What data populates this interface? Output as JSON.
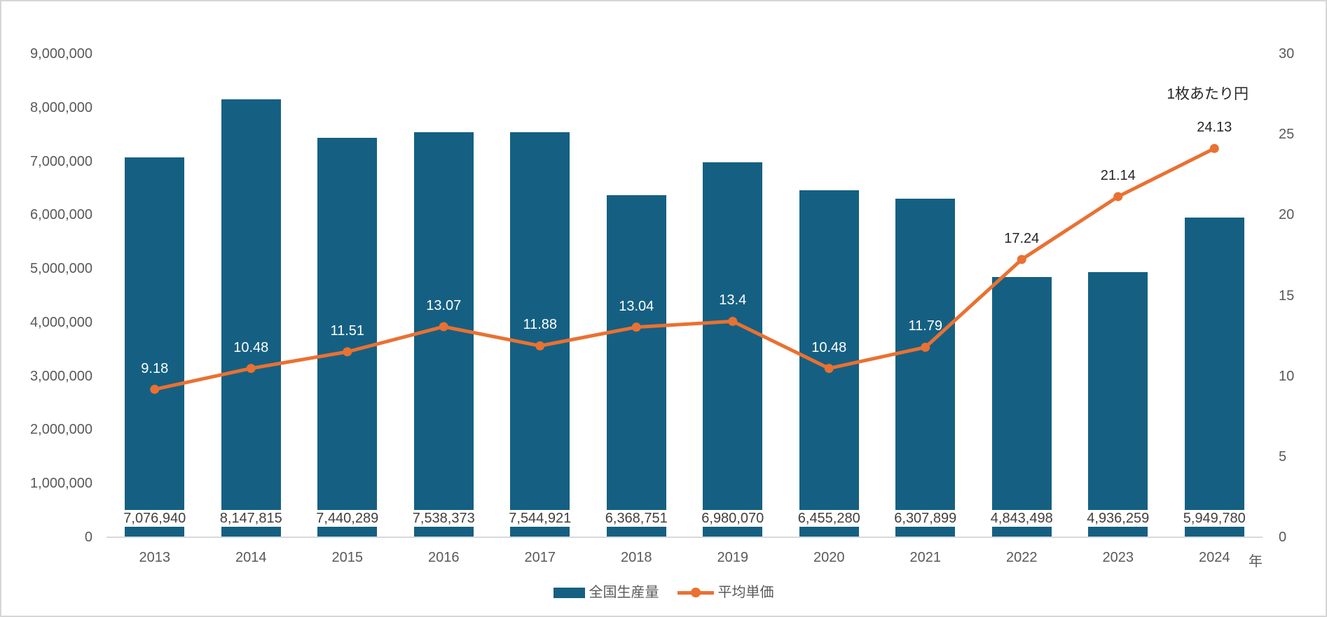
{
  "chart_data": {
    "type": "bar+line-combo",
    "categories": [
      "2013",
      "2014",
      "2015",
      "2016",
      "2017",
      "2018",
      "2019",
      "2020",
      "2021",
      "2022",
      "2023",
      "2024"
    ],
    "series": [
      {
        "name": "全国生産量",
        "type": "bar",
        "axis": "left",
        "color": "#156082",
        "values": [
          7076940,
          8147815,
          7440289,
          7538373,
          7544921,
          6368751,
          6980070,
          6455280,
          6307899,
          4843498,
          4936259,
          5949780
        ],
        "labels": [
          "7,076,940",
          "8,147,815",
          "7,440,289",
          "7,538,373",
          "7,544,921",
          "6,368,751",
          "6,980,070",
          "6,455,280",
          "6,307,899",
          "4,843,498",
          "4,936,259",
          "5,949,780"
        ]
      },
      {
        "name": "平均単価",
        "type": "line",
        "axis": "right",
        "color": "#e97132",
        "values": [
          9.18,
          10.48,
          11.51,
          13.07,
          11.88,
          13.04,
          13.4,
          10.48,
          11.79,
          17.24,
          21.14,
          24.13
        ],
        "labels": [
          "9.18",
          "10.48",
          "11.51",
          "13.07",
          "11.88",
          "13.04",
          "13.4",
          "10.48",
          "11.79",
          "17.24",
          "21.14",
          "24.13"
        ]
      }
    ],
    "left_axis": {
      "min": 0,
      "max": 9000000,
      "tick_step": 1000000,
      "tick_labels": [
        "0",
        "1,000,000",
        "2,000,000",
        "3,000,000",
        "4,000,000",
        "5,000,000",
        "6,000,000",
        "7,000,000",
        "8,000,000",
        "9,000,000"
      ]
    },
    "right_axis": {
      "min": 0,
      "max": 30,
      "tick_step": 5,
      "tick_labels": [
        "0",
        "5",
        "10",
        "15",
        "20",
        "25",
        "30"
      ]
    },
    "annotation": "1枚あたり円",
    "x_unit": "年",
    "grid": false,
    "legend_position": "bottom",
    "colors": {
      "bar": "#156082",
      "line": "#e97132",
      "axis_text": "#595959",
      "bar_label_text": "#3f3f3f",
      "line_label_dark": "#262626",
      "line_label_on_bar": "#ffffff",
      "axis_line": "#d9d9d9"
    }
  }
}
